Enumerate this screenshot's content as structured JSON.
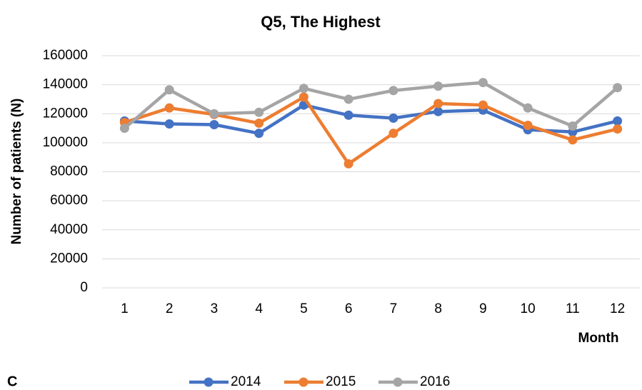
{
  "chart_data": {
    "type": "line",
    "title": "Q5, The Highest",
    "annotation": "C",
    "x_label": "Month",
    "y_label": "Number of patients (N)",
    "categories": [
      "1",
      "2",
      "3",
      "4",
      "5",
      "6",
      "7",
      "8",
      "9",
      "10",
      "11",
      "12"
    ],
    "series": [
      {
        "name": "2014",
        "color": "#4472c4",
        "values": [
          115000,
          113000,
          112500,
          106500,
          126000,
          119000,
          117000,
          121500,
          122500,
          109000,
          107500,
          115000
        ]
      },
      {
        "name": "2015",
        "color": "#ed7d31",
        "values": [
          114000,
          124000,
          119500,
          113500,
          131500,
          85500,
          106500,
          127000,
          126000,
          112000,
          102000,
          109500
        ]
      },
      {
        "name": "2016",
        "color": "#a5a5a5",
        "values": [
          110000,
          136500,
          120000,
          121000,
          137500,
          130000,
          136000,
          139000,
          141500,
          124000,
          111500,
          138000
        ]
      }
    ],
    "ylim": [
      0,
      160000
    ],
    "yticks": [
      0,
      20000,
      40000,
      60000,
      80000,
      100000,
      120000,
      140000,
      160000
    ],
    "grid": true,
    "legend": "bottom"
  }
}
